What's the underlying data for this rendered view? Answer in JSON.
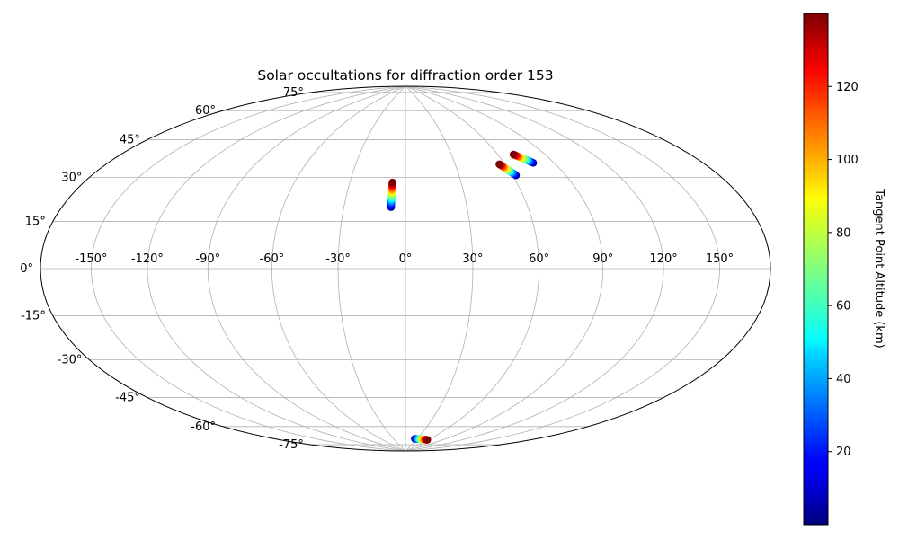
{
  "chart_data": {
    "type": "scatter",
    "projection": "hammer",
    "title": "Solar occultations for diffraction order 153",
    "xlabel": "",
    "ylabel": "",
    "grid": true,
    "x_ticks": [
      -150,
      -120,
      -90,
      -60,
      -30,
      0,
      30,
      60,
      90,
      120,
      150
    ],
    "x_tick_labels": [
      "-150°",
      "-120°",
      "-90°",
      "-60°",
      "-30°",
      "0°",
      "30°",
      "60°",
      "90°",
      "120°",
      "150°"
    ],
    "y_ticks": [
      -75,
      -60,
      -45,
      -30,
      -15,
      0,
      15,
      30,
      45,
      60,
      75
    ],
    "y_tick_labels": [
      "-75°",
      "-60°",
      "-45°",
      "-30°",
      "-15°",
      "0°",
      "15°",
      "30°",
      "45°",
      "60°",
      "75°"
    ],
    "xlim": [
      -180,
      180
    ],
    "ylim": [
      -90,
      90
    ],
    "colorbar": {
      "label": "Tangent Point Altitude (km)",
      "colormap": "jet",
      "range": [
        0,
        140
      ],
      "ticks": [
        20,
        40,
        60,
        80,
        100,
        120
      ],
      "tick_labels": [
        "20",
        "40",
        "60",
        "80",
        "100",
        "120"
      ]
    },
    "series": [
      {
        "tracks": [
          {
            "lon_start": -7.0,
            "lat_start": 27.5,
            "lon_end": -7.0,
            "lat_end": 39.0,
            "alt_start": 1,
            "alt_end": 140
          },
          {
            "lon_start": 62.0,
            "lat_start": 41.0,
            "lon_end": 56.5,
            "lat_end": 46.5,
            "alt_start": 1,
            "alt_end": 140
          },
          {
            "lon_start": 77.5,
            "lat_start": 46.0,
            "lon_end": 70.0,
            "lat_end": 50.5,
            "alt_start": 1,
            "alt_end": 140
          },
          {
            "lon_start": 24.0,
            "lat_start": -82.5,
            "lon_end": 58.0,
            "lat_end": -82.5,
            "alt_start": 1,
            "alt_end": 140
          }
        ]
      }
    ]
  }
}
